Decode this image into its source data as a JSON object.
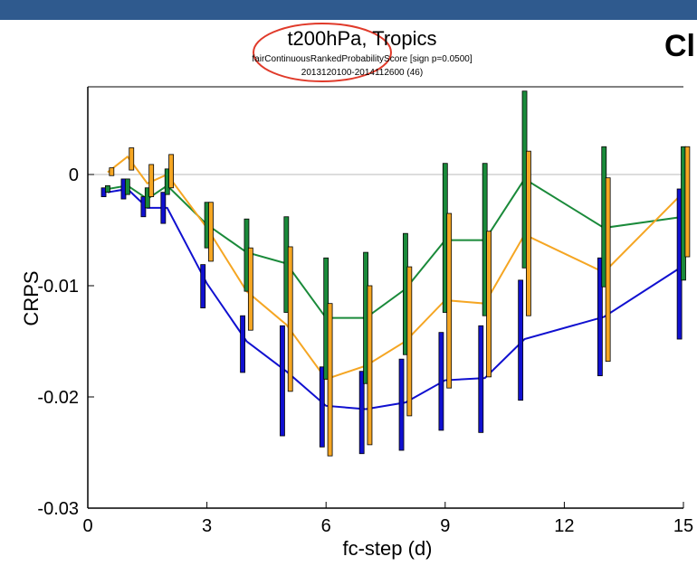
{
  "header": {
    "title": "t200hPa, Tropics",
    "subtitle": "fairContinuousRankedProbabilityScore [sign p=0.0500]",
    "period": "2013120100-2014112600 (46)",
    "side_heading": "Cl"
  },
  "colors": {
    "top_bar": "#2f5a8e",
    "highlight_ellipse": "#e03a2a",
    "zero_line": "#bbbbbb"
  },
  "chart_data": {
    "type": "line",
    "xlabel": "fc-step (d)",
    "ylabel": "CRPS",
    "xlim": [
      0,
      15
    ],
    "ylim": [
      -0.03,
      0.008
    ],
    "xticks": [
      0,
      3,
      6,
      9,
      12,
      15
    ],
    "xtick_labels": [
      "0",
      "3",
      "6",
      "9",
      "12",
      "15"
    ],
    "yticks": [
      0,
      -0.01,
      -0.02,
      -0.03
    ],
    "ytick_labels": [
      "0",
      "-0.01",
      "-0.02",
      "-0.03"
    ],
    "reference_line": 0,
    "series": [
      {
        "color": "#1010d0",
        "offset": -0.1,
        "x": [
          0.5,
          1,
          1.5,
          2,
          3,
          4,
          5,
          6,
          7,
          8,
          9,
          10,
          11,
          13,
          15
        ],
        "values": [
          -0.0016,
          -0.0013,
          -0.003,
          -0.003,
          -0.0098,
          -0.015,
          -0.0177,
          -0.0208,
          -0.0211,
          -0.0205,
          -0.0185,
          -0.0183,
          -0.0148,
          -0.0128,
          -0.0082
        ],
        "ci_low": [
          -0.002,
          -0.0022,
          -0.0038,
          -0.0044,
          -0.012,
          -0.0178,
          -0.0235,
          -0.0245,
          -0.0251,
          -0.0248,
          -0.023,
          -0.0232,
          -0.0203,
          -0.0181,
          -0.0148
        ],
        "ci_high": [
          -0.0012,
          -0.0004,
          -0.002,
          -0.0016,
          -0.0081,
          -0.0127,
          -0.0136,
          -0.0173,
          -0.0177,
          -0.0166,
          -0.0142,
          -0.0136,
          -0.0095,
          -0.0075,
          -0.0013
        ]
      },
      {
        "color": "#1a8a3a",
        "offset": 0.0,
        "x": [
          0.5,
          1,
          1.5,
          2,
          3,
          4,
          5,
          6,
          7,
          8,
          9,
          10,
          11,
          13,
          15
        ],
        "values": [
          -0.0013,
          -0.001,
          -0.0022,
          -0.001,
          -0.0045,
          -0.007,
          -0.008,
          -0.0129,
          -0.0129,
          -0.0103,
          -0.0059,
          -0.0059,
          -0.0004,
          -0.0048,
          -0.0038
        ],
        "ci_low": [
          -0.0016,
          -0.0018,
          -0.003,
          -0.0018,
          -0.0066,
          -0.0105,
          -0.0124,
          -0.0184,
          -0.0188,
          -0.0162,
          -0.0124,
          -0.0127,
          -0.0084,
          -0.0101,
          -0.0095
        ],
        "ci_high": [
          -0.001,
          -0.0004,
          -0.0012,
          0.0005,
          -0.0025,
          -0.004,
          -0.0038,
          -0.0075,
          -0.007,
          -0.0053,
          0.001,
          0.001,
          0.0075,
          0.0025,
          0.0025
        ]
      },
      {
        "color": "#f5a623",
        "offset": 0.1,
        "x": [
          0.5,
          1,
          1.5,
          2,
          3,
          4,
          5,
          6,
          7,
          8,
          9,
          10,
          11,
          13,
          15
        ],
        "values": [
          0.0002,
          0.0016,
          -0.0008,
          0.0,
          -0.0048,
          -0.0105,
          -0.0135,
          -0.0184,
          -0.0172,
          -0.015,
          -0.0113,
          -0.0116,
          -0.0054,
          -0.0088,
          -0.0016
        ],
        "ci_low": [
          -0.0001,
          0.0004,
          -0.002,
          -0.0012,
          -0.0078,
          -0.014,
          -0.0195,
          -0.0253,
          -0.0243,
          -0.0217,
          -0.0192,
          -0.0182,
          -0.0127,
          -0.0168,
          -0.0074
        ],
        "ci_high": [
          0.0006,
          0.0024,
          0.0009,
          0.0018,
          -0.0025,
          -0.0066,
          -0.0065,
          -0.0116,
          -0.01,
          -0.0083,
          -0.0035,
          -0.0051,
          0.0021,
          -0.0003,
          0.0025
        ]
      }
    ]
  }
}
